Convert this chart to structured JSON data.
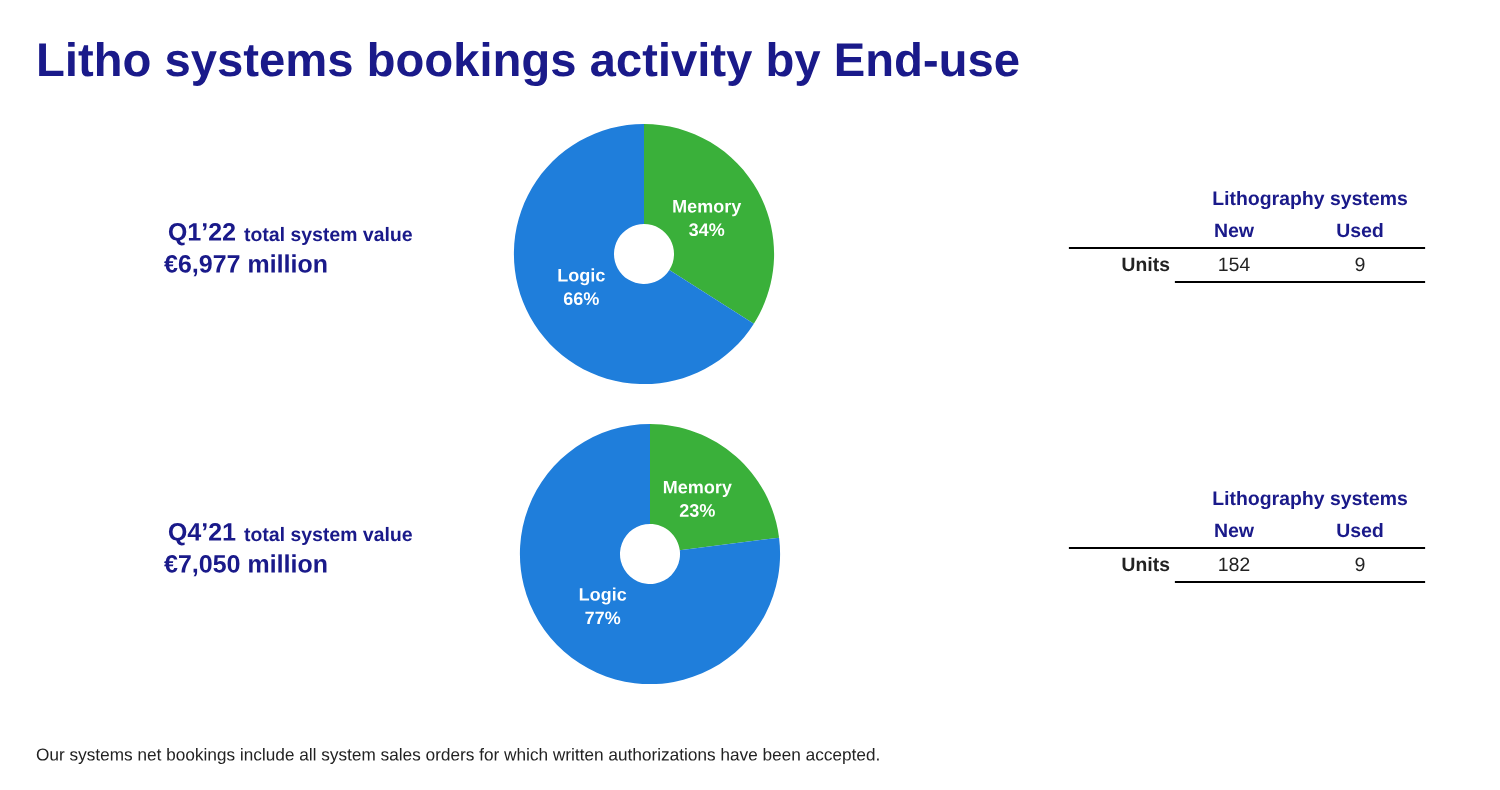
{
  "chart_data": [
    {
      "type": "other",
      "title": "Litho systems bookings activity by End-use",
      "annotations": [
        "Our systems net bookings include all system sales orders for which written authorizations have been accepted."
      ]
    },
    {
      "type": "donut",
      "title": "Q1’22",
      "subtitle": "total system value",
      "annotations": [
        "€6,977 million"
      ],
      "categories": [
        "Memory",
        "Logic"
      ],
      "values": [
        34,
        66
      ],
      "value_labels": [
        "34%",
        "66%"
      ],
      "colors": [
        "#3ab03a",
        "#1f7edb"
      ]
    },
    {
      "type": "other",
      "title": "Lithography systems",
      "categories": [
        "New",
        "Used"
      ],
      "ylabel": "Units",
      "values": [
        154,
        9
      ],
      "data_labels": true
    },
    {
      "type": "donut",
      "title": "Q4’21",
      "subtitle": "total system value",
      "annotations": [
        "€7,050 million"
      ],
      "categories": [
        "Memory",
        "Logic"
      ],
      "values": [
        23,
        77
      ],
      "value_labels": [
        "23%",
        "77%"
      ],
      "colors": [
        "#3ab03a",
        "#1f7edb"
      ]
    },
    {
      "type": "other",
      "title": "Lithography systems",
      "categories": [
        "New",
        "Used"
      ],
      "ylabel": "Units",
      "values": [
        182,
        9
      ],
      "data_labels": true
    }
  ]
}
